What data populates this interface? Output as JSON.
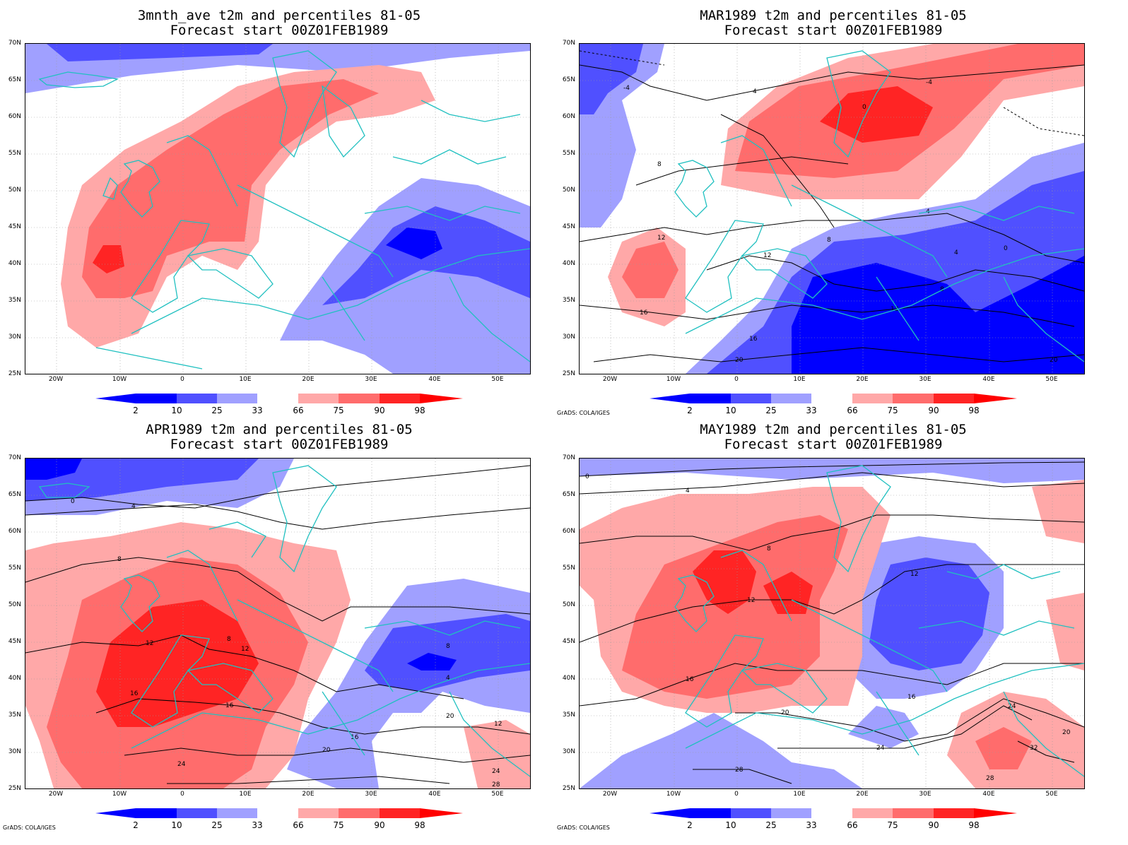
{
  "panels": [
    {
      "title1": "3mnth_ave t2m and percentiles 81-05",
      "title2": "Forecast start 00Z01FEB1989",
      "credit": ""
    },
    {
      "title1": "MAR1989 t2m and percentiles 81-05",
      "title2": "Forecast start 00Z01FEB1989",
      "credit": "GrADS: COLA/IGES"
    },
    {
      "title1": "APR1989 t2m and percentiles 81-05",
      "title2": "Forecast start 00Z01FEB1989",
      "credit": "GrADS: COLA/IGES"
    },
    {
      "title1": "MAY1989 t2m and percentiles 81-05",
      "title2": "Forecast start 00Z01FEB1989",
      "credit": "GrADS: COLA/IGES"
    }
  ],
  "lat_labels": [
    "70N",
    "65N",
    "60N",
    "55N",
    "50N",
    "45N",
    "40N",
    "35N",
    "30N",
    "25N"
  ],
  "lon_labels": [
    "20W",
    "10W",
    "0",
    "10E",
    "20E",
    "30E",
    "40E",
    "50E"
  ],
  "colorbar_labels": [
    "2",
    "10",
    "25",
    "33",
    "66",
    "75",
    "90",
    "98"
  ],
  "colors": {
    "blue_dark": "#0000ff",
    "blue_mid": "#5050ff",
    "blue_light": "#a0a0ff",
    "red_light": "#ffa8a8",
    "red_mid": "#ff6c6c",
    "red_dark": "#ff2424",
    "coast": "#20c0c0",
    "contour": "#000000"
  },
  "contour_labels": {
    "p1": [],
    "p2": [
      "-4",
      "0",
      "4",
      "8",
      "12",
      "16",
      "20",
      "-4",
      "4",
      "8",
      "12",
      "0",
      "4",
      "8",
      "12",
      "16",
      "20"
    ],
    "p3": [
      "0",
      "4",
      "8",
      "12",
      "16",
      "20",
      "24",
      "8",
      "12",
      "16",
      "4",
      "8",
      "12",
      "16",
      "20",
      "24",
      "28"
    ],
    "p4": [
      "0",
      "4",
      "8",
      "12",
      "16",
      "20",
      "24",
      "28",
      "12",
      "16",
      "20",
      "24",
      "28",
      "32"
    ]
  }
}
